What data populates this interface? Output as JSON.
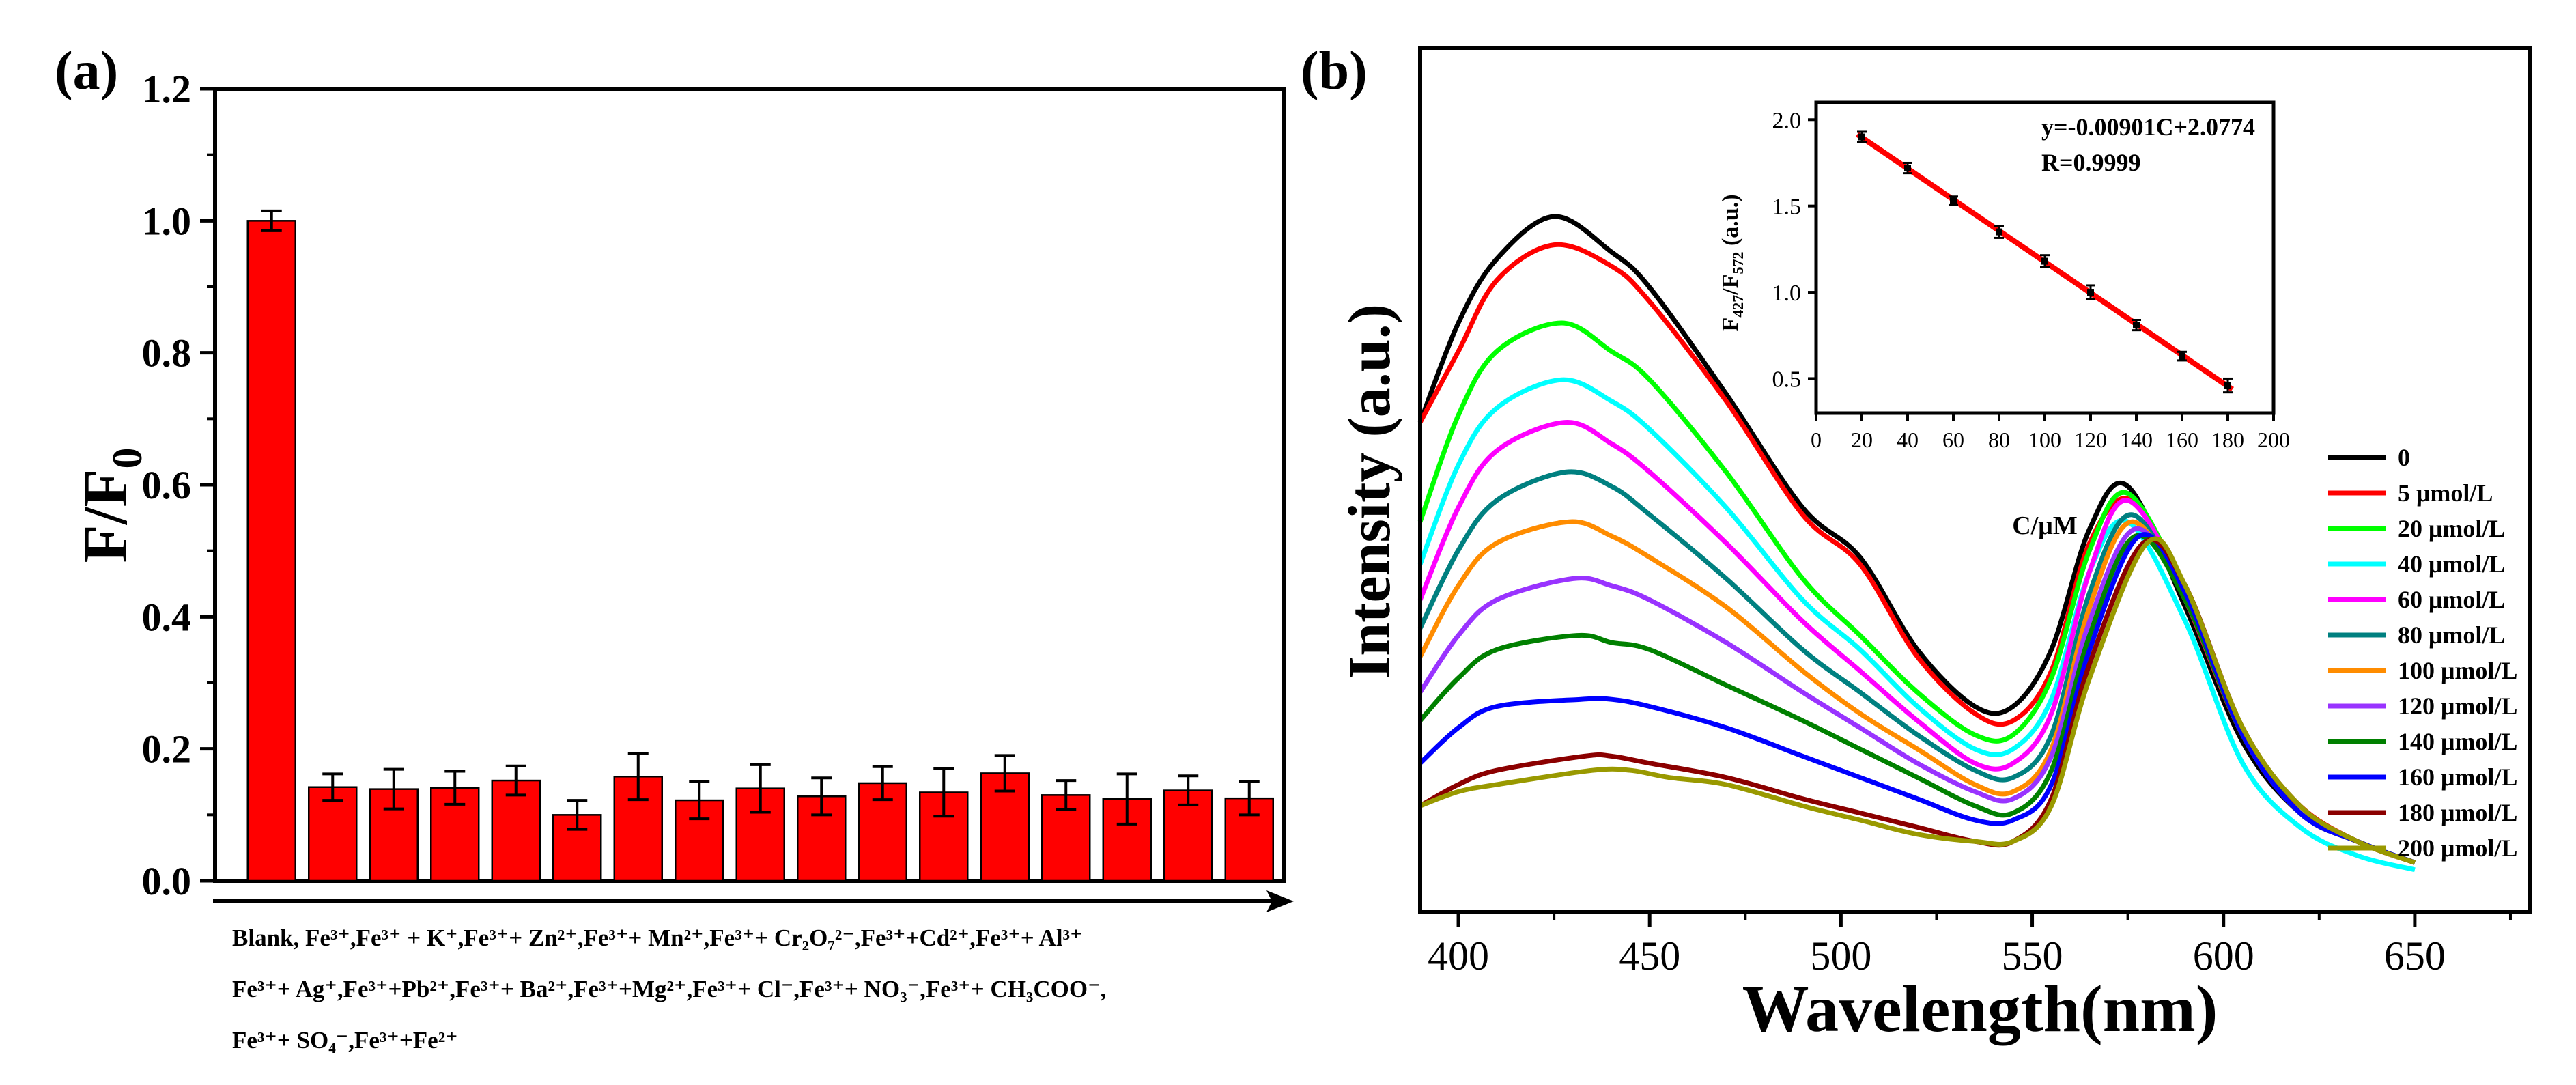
{
  "chart_data": [
    {
      "panel": "(a)",
      "type": "bar",
      "ylabel": "F/F",
      "ylabel_sub": "0",
      "ylim": [
        0,
        1.2
      ],
      "yticks": [
        0.0,
        0.2,
        0.4,
        0.6,
        0.8,
        1.0,
        1.2
      ],
      "ytick_labels": [
        "0.0",
        "0.2",
        "0.4",
        "0.6",
        "0.8",
        "1.0",
        "1.2"
      ],
      "bar_color": "#ff0000",
      "categories": [
        "Blank",
        "Fe3+",
        "Fe3++K+",
        "Fe3++Zn2+",
        "Fe3++Mn2+",
        "Fe3++Cr2O72-",
        "Fe3++Cd2+",
        "Fe3++Al3+",
        "Fe3++Ag+",
        "Fe3++Pb2+",
        "Fe3++Ba2+",
        "Fe3++Mg2+",
        "Fe3++Cl-",
        "Fe3++NO3-",
        "Fe3++CH3COO-",
        "Fe3++SO4-",
        "Fe3++Fe2+"
      ],
      "values": [
        1.0,
        0.142,
        0.139,
        0.141,
        0.152,
        0.1,
        0.158,
        0.122,
        0.14,
        0.128,
        0.148,
        0.134,
        0.163,
        0.13,
        0.124,
        0.137,
        0.125
      ],
      "errors": [
        0.015,
        0.02,
        0.03,
        0.025,
        0.022,
        0.022,
        0.035,
        0.028,
        0.036,
        0.028,
        0.025,
        0.036,
        0.027,
        0.022,
        0.038,
        0.022,
        0.025
      ],
      "label_lines": [
        "Blank, Fe³⁺,Fe³⁺ + K⁺,Fe³⁺+ Zn²⁺,Fe³⁺+ Mn²⁺,Fe³⁺+ Cr₂O₇²⁻,Fe³⁺+Cd²⁺,Fe³⁺+ Al³⁺",
        "Fe³⁺+ Ag⁺,Fe³⁺+Pb²⁺,Fe³⁺+ Ba²⁺,Fe³⁺+Mg²⁺,Fe³⁺+ Cl⁻,Fe³⁺+ NO₃⁻,Fe³⁺+ CH₃COO⁻,",
        "Fe³⁺+ SO₄⁻,Fe³⁺+Fe²⁺"
      ]
    },
    {
      "panel": "(b)",
      "type": "line",
      "xlabel": "Wavelength(nm)",
      "ylabel": "Intensity (a.u.)",
      "xlim": [
        390,
        680
      ],
      "ylim": [
        0,
        1
      ],
      "xticks": [
        400,
        450,
        500,
        550,
        600,
        650
      ],
      "xtick_labels": [
        "400",
        "450",
        "500",
        "550",
        "600",
        "650"
      ],
      "series": [
        {
          "name": "0",
          "color": "#000000",
          "x": [
            390,
            400,
            410,
            425,
            440,
            450,
            470,
            490,
            505,
            520,
            535,
            545,
            555,
            565,
            575,
            590,
            605,
            620,
            635,
            650
          ],
          "y": [
            0.66,
            0.8,
            0.89,
            0.95,
            0.9,
            0.85,
            0.7,
            0.54,
            0.47,
            0.34,
            0.26,
            0.26,
            0.34,
            0.51,
            0.57,
            0.4,
            0.21,
            0.11,
            0.07,
            0.04
          ]
        },
        {
          "name": "5 μmol/L",
          "color": "#ff0000",
          "x": [
            390,
            400,
            410,
            425,
            440,
            450,
            470,
            490,
            505,
            520,
            535,
            545,
            555,
            565,
            576,
            590,
            605,
            620,
            635,
            650
          ],
          "y": [
            0.66,
            0.76,
            0.86,
            0.91,
            0.88,
            0.83,
            0.69,
            0.53,
            0.46,
            0.33,
            0.25,
            0.24,
            0.31,
            0.49,
            0.55,
            0.41,
            0.22,
            0.12,
            0.07,
            0.04
          ]
        },
        {
          "name": "20 μmol/L",
          "color": "#00ff00",
          "x": [
            390,
            400,
            410,
            427,
            440,
            450,
            470,
            490,
            505,
            520,
            535,
            545,
            555,
            565,
            575,
            590,
            605,
            620,
            635,
            650
          ],
          "y": [
            0.52,
            0.67,
            0.76,
            0.8,
            0.76,
            0.72,
            0.59,
            0.44,
            0.36,
            0.28,
            0.22,
            0.22,
            0.3,
            0.48,
            0.56,
            0.42,
            0.22,
            0.11,
            0.07,
            0.04
          ]
        },
        {
          "name": "40 μmol/L",
          "color": "#00ffff",
          "x": [
            390,
            400,
            410,
            427,
            440,
            450,
            470,
            490,
            505,
            520,
            535,
            545,
            555,
            565,
            575,
            590,
            605,
            620,
            635,
            650
          ],
          "y": [
            0.46,
            0.6,
            0.68,
            0.72,
            0.69,
            0.65,
            0.54,
            0.41,
            0.34,
            0.26,
            0.2,
            0.2,
            0.27,
            0.45,
            0.52,
            0.38,
            0.18,
            0.09,
            0.05,
            0.03
          ]
        },
        {
          "name": "60 μmol/L",
          "color": "#ff00ff",
          "x": [
            390,
            400,
            410,
            428,
            440,
            450,
            470,
            490,
            505,
            520,
            535,
            545,
            555,
            565,
            575,
            590,
            605,
            620,
            635,
            650
          ],
          "y": [
            0.41,
            0.54,
            0.62,
            0.66,
            0.63,
            0.59,
            0.49,
            0.38,
            0.31,
            0.24,
            0.18,
            0.18,
            0.25,
            0.45,
            0.55,
            0.42,
            0.22,
            0.11,
            0.07,
            0.04
          ]
        },
        {
          "name": "80 μmol/L",
          "color": "#008080",
          "x": [
            390,
            400,
            410,
            428,
            440,
            450,
            470,
            490,
            505,
            520,
            535,
            545,
            555,
            565,
            576,
            590,
            605,
            620,
            635,
            650
          ],
          "y": [
            0.37,
            0.48,
            0.55,
            0.59,
            0.57,
            0.53,
            0.44,
            0.34,
            0.28,
            0.22,
            0.17,
            0.16,
            0.22,
            0.42,
            0.53,
            0.41,
            0.22,
            0.11,
            0.07,
            0.04
          ]
        },
        {
          "name": "100 μmol/L",
          "color": "#ff8c00",
          "x": [
            390,
            400,
            410,
            429,
            440,
            450,
            470,
            490,
            505,
            520,
            535,
            545,
            555,
            565,
            576,
            590,
            605,
            620,
            635,
            650
          ],
          "y": [
            0.33,
            0.43,
            0.49,
            0.52,
            0.5,
            0.47,
            0.4,
            0.31,
            0.25,
            0.2,
            0.15,
            0.14,
            0.2,
            0.4,
            0.52,
            0.41,
            0.22,
            0.11,
            0.07,
            0.04
          ]
        },
        {
          "name": "120 μmol/L",
          "color": "#9933ff",
          "x": [
            390,
            400,
            410,
            430,
            440,
            450,
            470,
            490,
            505,
            520,
            535,
            545,
            555,
            565,
            577,
            590,
            605,
            620,
            635,
            650
          ],
          "y": [
            0.28,
            0.36,
            0.41,
            0.44,
            0.43,
            0.41,
            0.35,
            0.28,
            0.23,
            0.18,
            0.14,
            0.13,
            0.19,
            0.38,
            0.51,
            0.41,
            0.22,
            0.11,
            0.07,
            0.04
          ]
        },
        {
          "name": "140 μmol/L",
          "color": "#008000",
          "x": [
            390,
            400,
            410,
            431,
            440,
            450,
            470,
            490,
            505,
            520,
            535,
            545,
            555,
            565,
            577,
            590,
            605,
            620,
            635,
            650
          ],
          "y": [
            0.24,
            0.3,
            0.34,
            0.36,
            0.35,
            0.34,
            0.29,
            0.24,
            0.2,
            0.16,
            0.12,
            0.11,
            0.17,
            0.36,
            0.5,
            0.41,
            0.22,
            0.11,
            0.07,
            0.04
          ]
        },
        {
          "name": "160 μmol/L",
          "color": "#0000ff",
          "x": [
            390,
            400,
            410,
            432,
            440,
            450,
            470,
            490,
            505,
            520,
            535,
            545,
            555,
            565,
            578,
            590,
            605,
            620,
            635,
            650
          ],
          "y": [
            0.18,
            0.23,
            0.26,
            0.27,
            0.27,
            0.26,
            0.23,
            0.19,
            0.16,
            0.13,
            0.1,
            0.1,
            0.15,
            0.34,
            0.5,
            0.42,
            0.22,
            0.11,
            0.07,
            0.04
          ]
        },
        {
          "name": "180 μmol/L",
          "color": "#8b0000",
          "x": [
            390,
            400,
            410,
            433,
            440,
            450,
            470,
            490,
            505,
            520,
            535,
            545,
            555,
            565,
            579,
            590,
            605,
            620,
            635,
            650
          ],
          "y": [
            0.12,
            0.15,
            0.17,
            0.19,
            0.19,
            0.18,
            0.16,
            0.13,
            0.11,
            0.09,
            0.07,
            0.07,
            0.13,
            0.32,
            0.49,
            0.43,
            0.23,
            0.12,
            0.07,
            0.04
          ]
        },
        {
          "name": "200 μmol/L",
          "color": "#999900",
          "x": [
            390,
            400,
            410,
            435,
            445,
            455,
            470,
            490,
            505,
            520,
            535,
            545,
            555,
            565,
            580,
            590,
            605,
            620,
            635,
            650
          ],
          "y": [
            0.12,
            0.14,
            0.15,
            0.17,
            0.17,
            0.16,
            0.15,
            0.12,
            0.1,
            0.08,
            0.07,
            0.07,
            0.12,
            0.3,
            0.49,
            0.43,
            0.23,
            0.12,
            0.07,
            0.04
          ]
        }
      ],
      "inset": {
        "type": "scatter",
        "xlabel": "C/μM",
        "ylabel": "F427/F572 (a.u.)",
        "ylabel_parts": [
          "F",
          "427",
          "/F",
          "572",
          " (a.u.)"
        ],
        "xlim": [
          0,
          200
        ],
        "ylim": [
          0.3,
          2.1
        ],
        "xticks": [
          0,
          20,
          40,
          60,
          80,
          100,
          120,
          140,
          160,
          180,
          200
        ],
        "yticks": [
          0.5,
          1.0,
          1.5,
          2.0
        ],
        "ytick_labels": [
          "0.5",
          "1.0",
          "1.5",
          "2.0"
        ],
        "x": [
          20,
          40,
          60,
          80,
          100,
          120,
          140,
          160,
          180
        ],
        "y": [
          1.9,
          1.72,
          1.53,
          1.35,
          1.18,
          1.0,
          0.81,
          0.63,
          0.46
        ],
        "errors": [
          0.03,
          0.03,
          0.025,
          0.035,
          0.035,
          0.04,
          0.03,
          0.025,
          0.04
        ],
        "fit": {
          "slope": -0.00901,
          "intercept": 2.0774
        },
        "fit_color": "#ff0000",
        "equation": "y=-0.00901C+2.0774",
        "r_value": "R=0.9999"
      }
    }
  ]
}
